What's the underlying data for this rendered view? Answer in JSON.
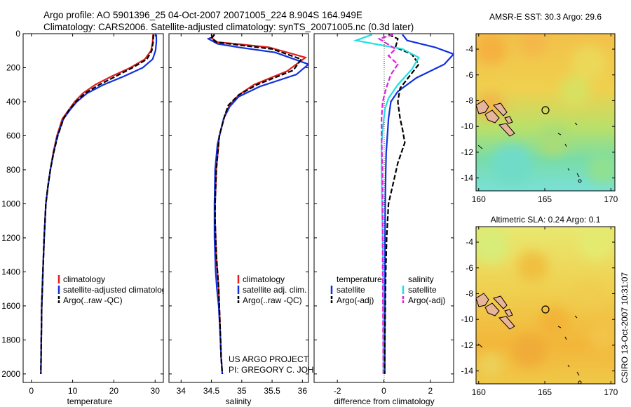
{
  "header": {
    "title_line1": "Argo profile: AO 5901396_25 04-Oct-2007 20071005_224 8.904S 164.949E",
    "title_line2": "Climatology: CARS2006. Satellite-adjusted climatology: synTS_20071005.nc (0.3d later)"
  },
  "side_text": "CSIRO 13-Oct-2007 10:31:07",
  "project_note": {
    "line1": "US ARGO PROJECT",
    "line2": "PI: GREGORY C. JOHNSON"
  },
  "colors": {
    "climatology": "#e02020",
    "satellite": "#1030e0",
    "argo": "#000000",
    "argo_sal_adj": "#e020e0",
    "sat_sal": "#20e0e0"
  },
  "chart_data": [
    {
      "type": "line",
      "id": "temperature",
      "xlabel": "temperature",
      "xlim": [
        -2,
        32
      ],
      "ylim": [
        0,
        2050
      ],
      "xticks": [
        0,
        10,
        20,
        30
      ],
      "yticks": [
        0,
        200,
        400,
        600,
        800,
        1000,
        1200,
        1400,
        1600,
        1800,
        2000
      ],
      "legend": [
        "climatology",
        "satellite-adjusted climatology",
        "Argo(..raw -QC)"
      ],
      "series": [
        {
          "name": "climatology",
          "color": "#e02020",
          "dash": false,
          "x": [
            29.5,
            29.4,
            29.0,
            27.5,
            24.0,
            19.5,
            15.5,
            12.5,
            10.5,
            9.0,
            7.5,
            6.2,
            5.3,
            4.6,
            4.0,
            3.5,
            3.1,
            2.8,
            2.5,
            2.3
          ],
          "y": [
            5,
            50,
            100,
            150,
            200,
            250,
            300,
            350,
            400,
            450,
            500,
            600,
            700,
            800,
            900,
            1000,
            1200,
            1400,
            1600,
            2000
          ]
        },
        {
          "name": "satellite-adjusted climatology",
          "color": "#1030e0",
          "dash": false,
          "x": [
            30.3,
            30.3,
            30.1,
            29.4,
            27.0,
            22.5,
            17.5,
            13.5,
            11.0,
            9.3,
            7.8,
            6.3,
            5.4,
            4.6,
            4.0,
            3.5,
            3.1,
            2.8,
            2.5,
            2.3
          ],
          "y": [
            5,
            50,
            100,
            150,
            200,
            250,
            300,
            350,
            400,
            450,
            500,
            600,
            700,
            800,
            900,
            1000,
            1200,
            1400,
            1600,
            2000
          ]
        },
        {
          "name": "Argo(..raw -QC)",
          "color": "#000000",
          "dash": true,
          "x": [
            29.6,
            29.5,
            29.2,
            28.0,
            24.5,
            20.5,
            16.5,
            13.0,
            10.8,
            9.1,
            7.8,
            6.4,
            5.4,
            4.6,
            4.0,
            3.5,
            3.1,
            2.8,
            2.5,
            2.3
          ],
          "y": [
            5,
            50,
            100,
            150,
            200,
            250,
            300,
            350,
            400,
            450,
            500,
            600,
            700,
            800,
            900,
            1000,
            1200,
            1400,
            1600,
            2000
          ]
        }
      ]
    },
    {
      "type": "line",
      "id": "salinity",
      "xlabel": "salinity",
      "xlim": [
        33.8,
        36.1
      ],
      "ylim": [
        0,
        2050
      ],
      "xticks": [
        34,
        34.5,
        35,
        35.5,
        36
      ],
      "legend": [
        "climatology",
        "satellite adj. clim.",
        "Argo(..raw -QC)"
      ],
      "series": [
        {
          "name": "climatology",
          "color": "#e02020",
          "dash": false,
          "x": [
            34.5,
            34.52,
            34.6,
            34.9,
            35.45,
            36.05,
            35.75,
            35.2,
            34.95,
            34.8,
            34.72,
            34.63,
            34.58,
            34.56,
            34.56,
            34.57,
            34.58,
            34.6,
            34.62,
            34.64,
            34.66,
            34.68
          ],
          "y": [
            5,
            30,
            50,
            60,
            80,
            140,
            220,
            300,
            360,
            420,
            480,
            600,
            800,
            1000,
            1100,
            1200,
            1300,
            1400,
            1500,
            1700,
            1900,
            2000
          ]
        },
        {
          "name": "satellite adj. clim.",
          "color": "#1030e0",
          "dash": false,
          "x": [
            34.55,
            34.52,
            34.45,
            34.6,
            34.95,
            35.55,
            36.1,
            35.9,
            35.3,
            34.95,
            34.8,
            34.7,
            34.6,
            34.56,
            34.55,
            34.55,
            34.57,
            34.59,
            34.62,
            34.65,
            34.66,
            34.68
          ],
          "y": [
            5,
            20,
            30,
            60,
            80,
            110,
            180,
            240,
            310,
            370,
            430,
            500,
            650,
            800,
            1000,
            1200,
            1400,
            1500,
            1600,
            1800,
            1900,
            2000
          ]
        },
        {
          "name": "Argo(..raw -QC)",
          "color": "#000000",
          "dash": true,
          "x": [
            34.55,
            34.5,
            34.58,
            34.92,
            35.5,
            35.98,
            35.85,
            35.25,
            34.95,
            34.78,
            34.72,
            34.63,
            34.58,
            34.56,
            34.56,
            34.57,
            34.58,
            34.6,
            34.62,
            34.64,
            34.66,
            34.68
          ],
          "y": [
            5,
            25,
            50,
            65,
            90,
            150,
            215,
            300,
            360,
            420,
            480,
            600,
            800,
            1000,
            1100,
            1200,
            1300,
            1400,
            1500,
            1700,
            1900,
            2000
          ]
        }
      ]
    },
    {
      "type": "line",
      "id": "difference",
      "xlabel": "difference from climatology",
      "xlim": [
        -3,
        3
      ],
      "ylim": [
        0,
        2050
      ],
      "xticks": [
        -2,
        0,
        2
      ],
      "legend_left_title": "temperature",
      "legend_right_title": "salinity",
      "legend_left": [
        "satellite",
        "Argo(-adj)"
      ],
      "legend_right": [
        "satellite",
        "Argo(-adj)"
      ],
      "series": [
        {
          "name": "temperature satellite",
          "color": "#1030e0",
          "dash": false,
          "x": [
            0.8,
            1.0,
            2.2,
            3.0,
            2.6,
            1.4,
            0.6,
            0.3,
            0.2,
            0.15,
            0.1,
            0.08,
            0.06,
            0.05,
            0.05,
            0.05,
            0.04,
            0.04
          ],
          "y": [
            5,
            40,
            80,
            120,
            180,
            260,
            340,
            400,
            500,
            600,
            700,
            800,
            1000,
            1200,
            1400,
            1600,
            1800,
            2000
          ]
        },
        {
          "name": "temperature Argo(-adj)",
          "color": "#000000",
          "dash": true,
          "x": [
            0.2,
            0.6,
            0.5,
            1.2,
            1.5,
            1.1,
            0.7,
            0.6,
            0.7,
            0.8,
            0.9,
            0.6,
            0.4,
            0.2,
            0.12,
            0.08,
            0.05,
            0.03
          ],
          "y": [
            5,
            30,
            80,
            120,
            180,
            250,
            320,
            400,
            500,
            560,
            640,
            760,
            880,
            1000,
            1200,
            1400,
            1700,
            2000
          ]
        },
        {
          "name": "salinity satellite",
          "color": "#20e0e0",
          "dash": false,
          "x": [
            -0.5,
            -1.2,
            0.8,
            1.5,
            1.2,
            0.6,
            0.2,
            0.05,
            0.0,
            -0.05,
            -0.1,
            -0.1,
            -0.08,
            -0.05,
            -0.03,
            -0.02,
            -0.02,
            -0.02
          ],
          "y": [
            5,
            40,
            90,
            140,
            210,
            300,
            380,
            440,
            500,
            560,
            650,
            800,
            1000,
            1200,
            1400,
            1600,
            1800,
            2000
          ]
        },
        {
          "name": "salinity Argo(-adj)",
          "color": "#e020e0",
          "dash": true,
          "x": [
            0.4,
            -0.2,
            0.5,
            0.2,
            0.6,
            0.3,
            0.1,
            -0.05,
            -0.1,
            -0.1,
            -0.08,
            -0.06,
            -0.05,
            -0.05,
            -0.05,
            -0.04,
            -0.03,
            -0.02
          ],
          "y": [
            5,
            30,
            90,
            130,
            180,
            240,
            320,
            400,
            500,
            600,
            700,
            800,
            1000,
            1200,
            1400,
            1600,
            1800,
            2000
          ]
        }
      ]
    },
    {
      "type": "heatmap",
      "id": "sst-map",
      "title": "AMSR-E SST: 30.3 Argo: 29.6",
      "xlim": [
        159.8,
        170.3
      ],
      "ylim": [
        -15,
        -2.8
      ],
      "xticks": [
        160,
        165,
        170
      ],
      "yticks": [
        -4,
        -6,
        -8,
        -10,
        -12,
        -14
      ],
      "argo_position": [
        164.95,
        -8.9
      ]
    },
    {
      "type": "heatmap",
      "id": "sla-map",
      "title": "Altimetric SLA: 0.24 Argo: 0.1",
      "xlim": [
        159.8,
        170.3
      ],
      "ylim": [
        -15,
        -2.8
      ],
      "xticks": [
        160,
        165,
        170
      ],
      "yticks": [
        -4,
        -6,
        -8,
        -10,
        -12,
        -14
      ],
      "argo_position": [
        164.95,
        -8.9
      ]
    }
  ]
}
